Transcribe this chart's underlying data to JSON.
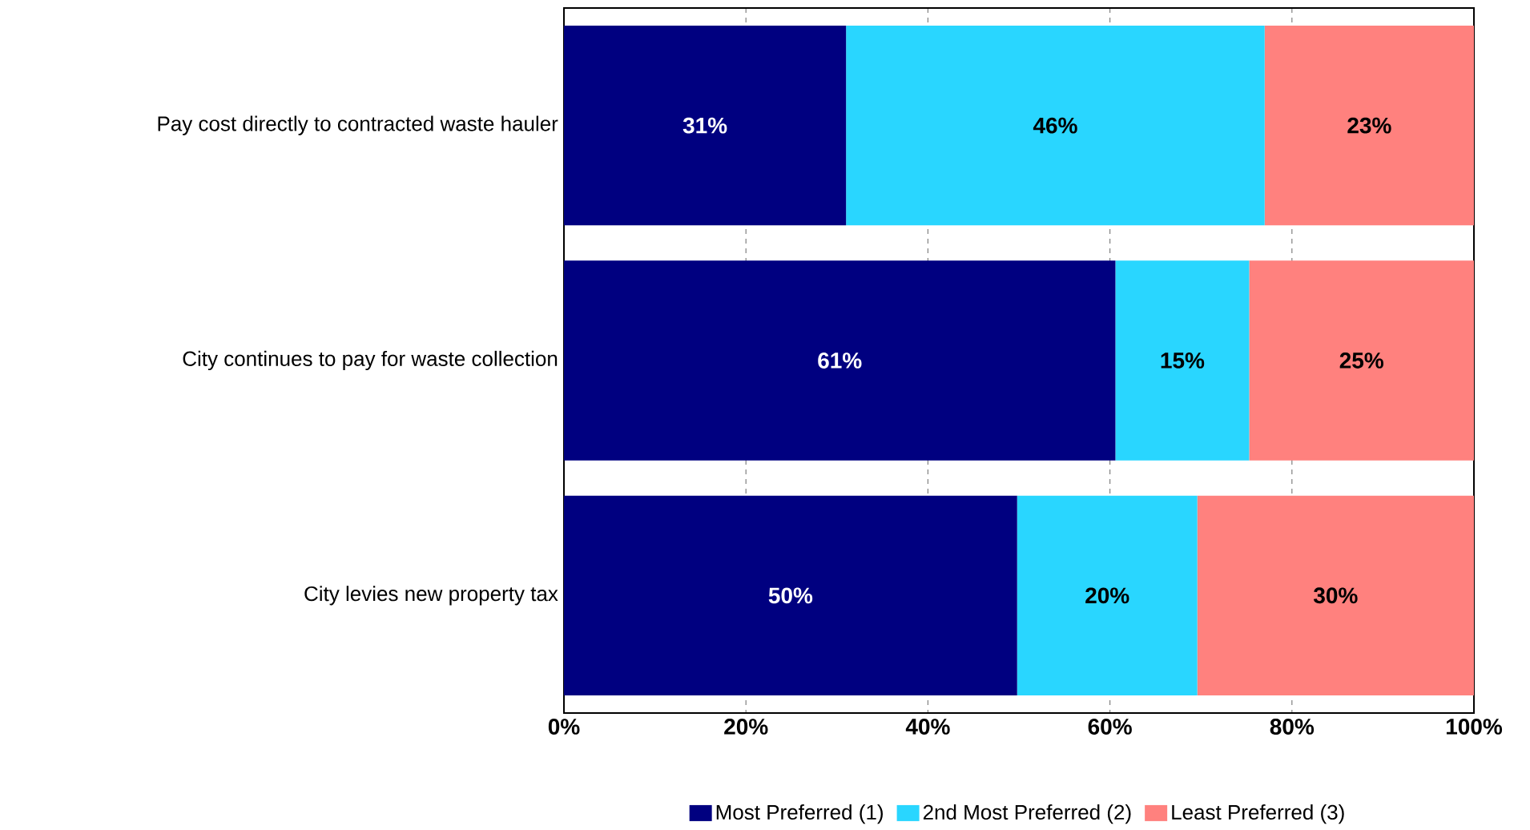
{
  "chart_data": {
    "type": "bar",
    "orientation": "horizontal",
    "stacked": true,
    "categories": [
      "Pay cost directly to contracted waste hauler",
      "City continues to pay for waste collection",
      "City levies new property tax"
    ],
    "series": [
      {
        "name": "Most Preferred (1)",
        "color": "#000080",
        "values": [
          31,
          60.6,
          49.8
        ],
        "value_labels": [
          "31%",
          "61%",
          "50%"
        ]
      },
      {
        "name": "2nd Most Preferred (2)",
        "color": "#29d6ff",
        "values": [
          46,
          14.7,
          19.8
        ],
        "value_labels": [
          "46%",
          "15%",
          "20%"
        ]
      },
      {
        "name": "Least Preferred (3)",
        "color": "#ff817e",
        "values": [
          23,
          24.7,
          30.4
        ],
        "value_labels": [
          "23%",
          "25%",
          "30%"
        ]
      }
    ],
    "xlim": [
      0,
      100
    ],
    "xticks": [
      {
        "value": 0,
        "label": "0%"
      },
      {
        "value": 20,
        "label": "20%"
      },
      {
        "value": 40,
        "label": "40%"
      },
      {
        "value": 60,
        "label": "60%"
      },
      {
        "value": 80,
        "label": "80%"
      },
      {
        "value": 100,
        "label": "100%"
      }
    ],
    "grid": "x",
    "legend": "bottom"
  }
}
